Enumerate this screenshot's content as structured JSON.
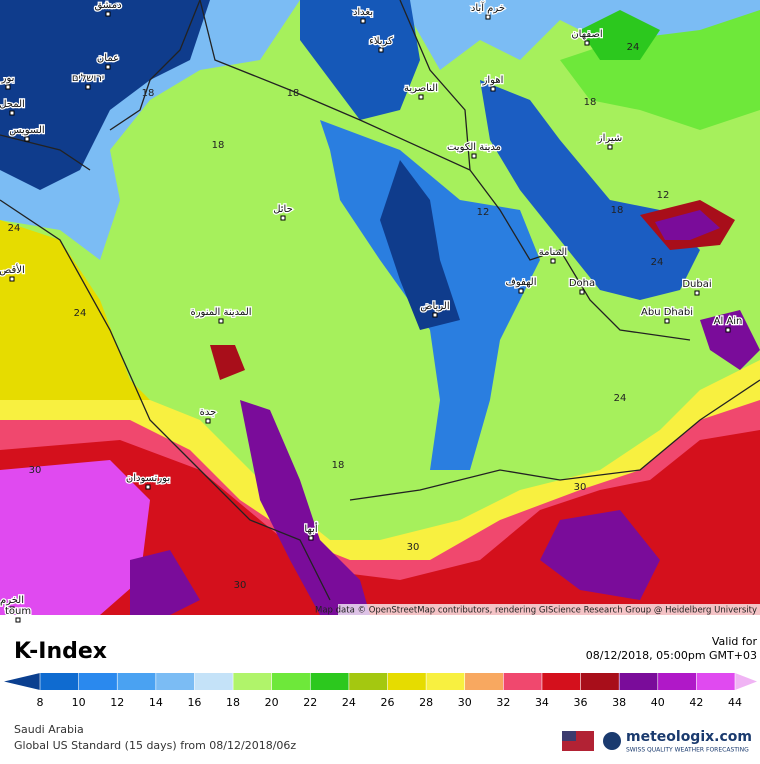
{
  "map": {
    "places": [
      "دمشق",
      "بغداد",
      "خرم آباد",
      "كربلاء",
      "اصفهان",
      "عمان",
      "ירושלים",
      "بور",
      "المحل",
      "السويس",
      "اهواز",
      "الناصرية",
      "مدينة الكويت",
      "شيراز",
      "حائل",
      "المنامة",
      "الهفوف",
      "Doha",
      "الرياض",
      "Dubai",
      "Abu Dhabi",
      "Al Ain",
      "المدينة المنورة",
      "جدة",
      "بورتسودان",
      "أبها",
      "الأقص",
      "الخرم",
      "toum"
    ],
    "contour_labels": [
      "18",
      "18",
      "18",
      "12",
      "12",
      "18",
      "18",
      "24",
      "24",
      "24",
      "24",
      "18",
      "24",
      "30",
      "30",
      "30",
      "30"
    ],
    "attribution": "Map data © OpenStreetMap contributors, rendering GIScience Research Group @ Heidelberg University"
  },
  "footer": {
    "title": "K-Index",
    "valid_label": "Valid for",
    "valid_time": "08/12/2018, 05:00pm GMT+03",
    "region": "Saudi Arabia",
    "model": "Global US Standard (15 days) from 08/12/2018/06z",
    "brand": "meteologix.com",
    "tagline": "SWISS QUALITY WEATHER FORECASTING"
  },
  "legend": {
    "ticks": [
      8,
      10,
      12,
      14,
      16,
      18,
      20,
      22,
      24,
      26,
      28,
      30,
      32,
      34,
      36,
      38,
      40,
      42,
      44
    ],
    "colors": [
      "#0b3f8f",
      "#0f6bd0",
      "#2a89ee",
      "#4aa2f2",
      "#7bbcf4",
      "#c4e2f8",
      "#b0f46a",
      "#6ee83a",
      "#2cc81e",
      "#a4c810",
      "#e6dc00",
      "#f8f040",
      "#f8a860",
      "#f0486e",
      "#d4101c",
      "#a80e1a",
      "#7a0c9a",
      "#b018c8",
      "#e04af0",
      "#f0b4f4"
    ]
  }
}
